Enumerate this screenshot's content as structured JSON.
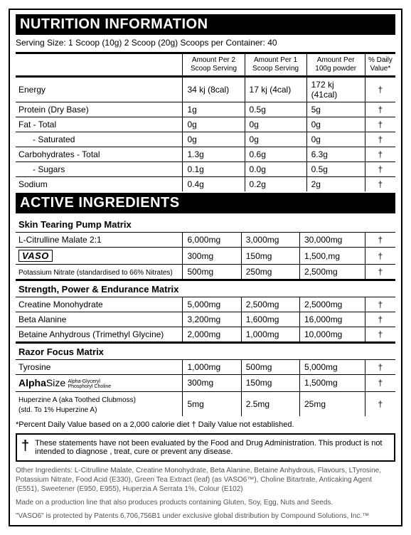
{
  "header1": "NUTRITION INFORMATION",
  "serving": "Serving Size:  1 Scoop (10g)   2 Scoop (20g)   Scoops per Container: 40",
  "cols": {
    "c1": "Amount Per\n2 Scoop Serving",
    "c2": "Amount Per\n1 Scoop Serving",
    "c3": "Amount Per\n100g powder",
    "c4": "% Daily\nValue*"
  },
  "nutri": [
    {
      "n": "Energy",
      "a": "34 kj (8cal)",
      "b": "17 kj (4cal)",
      "c": "172 kj (41cal)",
      "d": "†"
    },
    {
      "n": "Protein (Dry Base)",
      "a": "1g",
      "b": "0.5g",
      "c": "5g",
      "d": "†"
    },
    {
      "n": "Fat - Total",
      "a": "0g",
      "b": "0g",
      "c": "0g",
      "d": "†"
    },
    {
      "n": "- Saturated",
      "a": "0g",
      "b": "0g",
      "c": "0g",
      "d": "†",
      "sub": true
    },
    {
      "n": "Carbohydrates - Total",
      "a": "1.3g",
      "b": "0.6g",
      "c": "6.3g",
      "d": "†"
    },
    {
      "n": "- Sugars",
      "a": "0.1g",
      "b": "0.0g",
      "c": "0.5g",
      "d": "†",
      "sub": true
    },
    {
      "n": "Sodium",
      "a": "0.4g",
      "b": "0.2g",
      "c": "2g",
      "d": "†"
    }
  ],
  "header2": "ACTIVE INGREDIENTS",
  "matrices": [
    {
      "title": "Skin Tearing Pump Matrix",
      "rows": [
        {
          "n": "L-Citrulline Malate 2:1",
          "a": "6,000mg",
          "b": "3,000mg",
          "c": "30,000mg",
          "d": "†"
        },
        {
          "n": "VASO",
          "brand": 1,
          "a": "300mg",
          "b": "150mg",
          "c": "1,500,mg",
          "d": "†"
        },
        {
          "n": "Potassium Nitrate (standardised to 66% Nitrates)",
          "small": true,
          "a": "500mg",
          "b": "250mg",
          "c": "2,500mg",
          "d": "†"
        }
      ]
    },
    {
      "title": "Strength, Power & Endurance Matrix",
      "rows": [
        {
          "n": "Creatine Monohydrate",
          "a": "5,000mg",
          "b": "2,500mg",
          "c": "2,5000mg",
          "d": "†"
        },
        {
          "n": "Beta  Alanine",
          "a": "3,200mg",
          "b": "1,600mg",
          "c": "16,000mg",
          "d": "†"
        },
        {
          "n": "Betaine Anhydrous (Trimethyl Glycine)",
          "a": "2,000mg",
          "b": "1,000mg",
          "c": "10,000mg",
          "d": "†"
        }
      ]
    },
    {
      "title": "Razor Focus Matrix",
      "rows": [
        {
          "n": "Tyrosine",
          "a": "1,000mg",
          "b": "500mg",
          "c": "5,000mg",
          "d": "†"
        },
        {
          "n": "AlphaSize",
          "brand": 2,
          "sub2": "Alpha-Glyceryl\nPhosphoryl Choline",
          "a": "300mg",
          "b": "150mg",
          "c": "1,500mg",
          "d": "†"
        },
        {
          "n": "Huperzine A (aka Toothed Clubmoss)\n(std. To 1% Huperzine A)",
          "small": true,
          "a": "5mg",
          "b": "2.5mg",
          "c": "25mg",
          "d": "†"
        }
      ]
    }
  ],
  "footnote": "*Percent Daily Value based on a 2,000 calorie diet        † Daily Value not established.",
  "dagger": "†",
  "statement": "These statements have not been evaluated by the Food and Drug Administration. This product is not intended to diagnose , treat, cure or prevent any disease.",
  "other1": "Other Ingredients: L-Citrulline Malate, Creatine Monohydrate, Beta Alanine, Betaine Anhydrous, Flavours, LTyrosine, Potassium Nitrate, Food Acid (E330), Green Tea Extract (leaf) (as VASO6™), Choline Bitartrate, Anticaking Agent (E551), Sweetener (E950, E955), Huperzia A Serrata 1%, Colour (E102)",
  "other2": "Made on a production line that also produces products containing Gluten, Soy, Egg, Nuts and Seeds.",
  "other3": "\"VASO6\" is protected by Patents 6,706,756B1 under exclusive global distribution by Compound Solutions, Inc.™"
}
